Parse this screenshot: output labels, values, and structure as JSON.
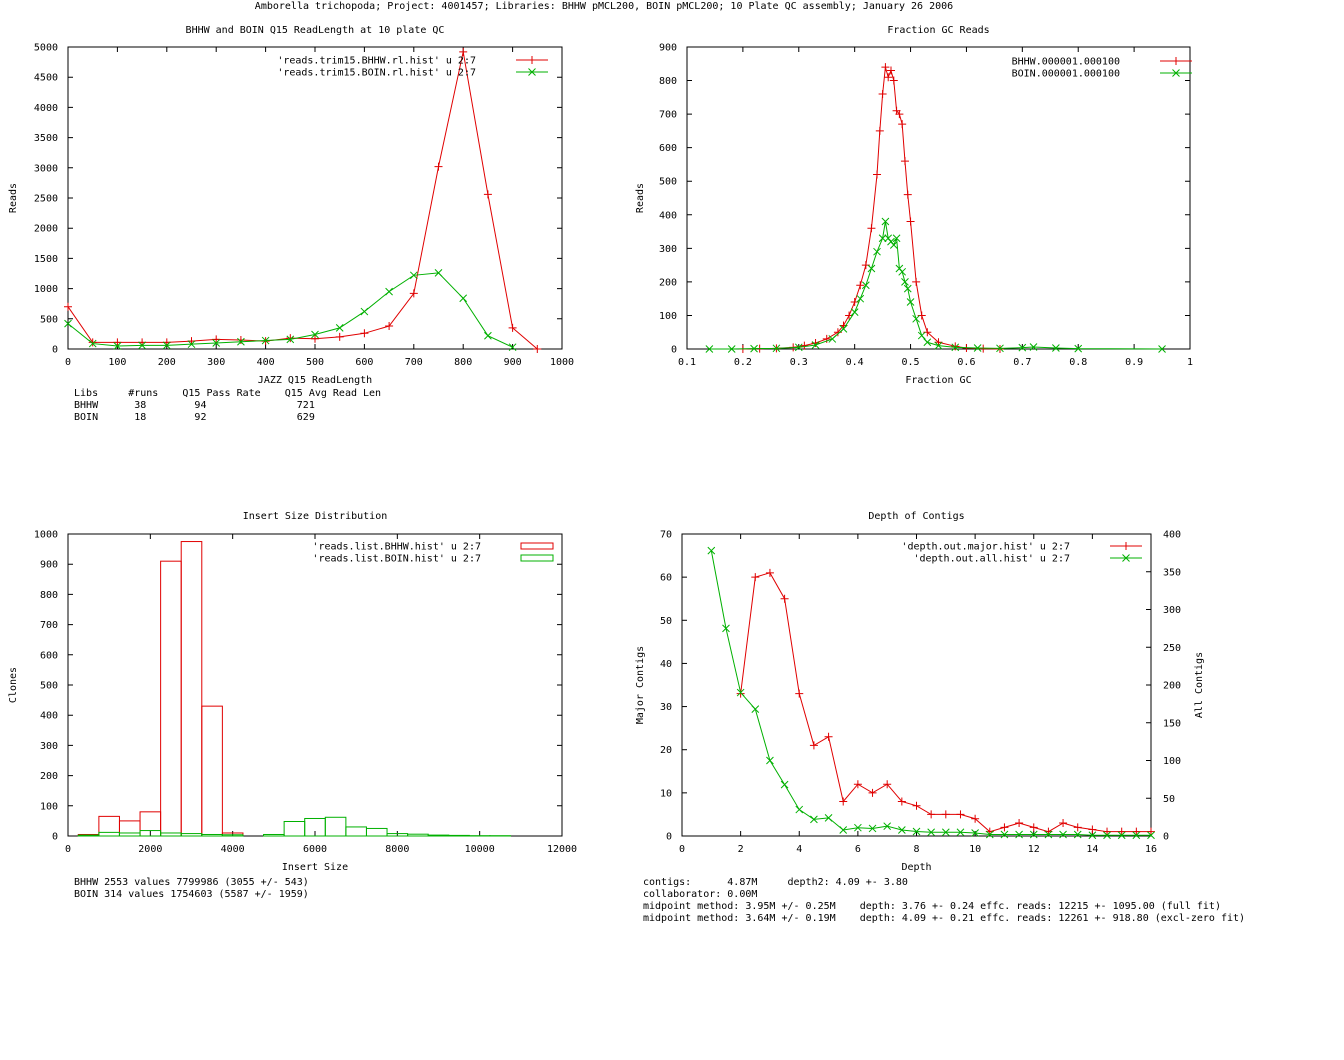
{
  "header": "Amborella trichopoda; Project: 4001457; Libraries: BHHW pMCL200, BOIN pMCL200; 10 Plate QC assembly; January 26 2006",
  "colors": {
    "red": "#e00000",
    "green": "#00b000",
    "axis": "#000000"
  },
  "chart_data": [
    {
      "type": "line",
      "title": "BHHW and BOIN Q15 ReadLength at 10 plate QC",
      "xlabel": "JAZZ Q15 ReadLength",
      "ylabel": "Reads",
      "xlim": [
        0,
        1000
      ],
      "ylim": [
        0,
        5000
      ],
      "xticks": [
        0,
        100,
        200,
        300,
        400,
        500,
        600,
        700,
        800,
        900,
        1000
      ],
      "yticks": [
        0,
        500,
        1000,
        1500,
        2000,
        2500,
        3000,
        3500,
        4000,
        4500,
        5000
      ],
      "legend": "top-right",
      "series": [
        {
          "name": "'reads.trim15.BHHW.rl.hist' u 2:7",
          "color": "#e00000",
          "marker": "plus",
          "x": [
            0,
            50,
            100,
            150,
            200,
            250,
            300,
            350,
            400,
            450,
            500,
            550,
            600,
            650,
            700,
            750,
            800,
            850,
            900,
            950
          ],
          "y": [
            700,
            110,
            110,
            110,
            110,
            130,
            160,
            150,
            130,
            180,
            170,
            200,
            260,
            380,
            920,
            3020,
            4920,
            2560,
            350,
            0
          ]
        },
        {
          "name": "'reads.trim15.BOIN.rl.hist' u 2:7",
          "color": "#00b000",
          "marker": "x",
          "x": [
            0,
            50,
            100,
            150,
            200,
            250,
            300,
            350,
            400,
            450,
            500,
            550,
            600,
            650,
            700,
            750,
            800,
            850,
            900
          ],
          "y": [
            420,
            90,
            50,
            60,
            60,
            80,
            100,
            120,
            140,
            160,
            240,
            350,
            620,
            950,
            1220,
            1260,
            840,
            220,
            30
          ]
        }
      ]
    },
    {
      "type": "line",
      "title": "Fraction GC Reads",
      "xlabel": "Fraction GC",
      "ylabel": "Reads",
      "xlim": [
        0.1,
        1
      ],
      "ylim": [
        0,
        900
      ],
      "xticks": [
        0.1,
        0.2,
        0.3,
        0.4,
        0.5,
        0.6,
        0.7,
        0.8,
        0.9,
        1
      ],
      "yticks": [
        0,
        100,
        200,
        300,
        400,
        500,
        600,
        700,
        800,
        900
      ],
      "legend": "top-right",
      "series": [
        {
          "name": "BHHW.000001.000100",
          "color": "#e00000",
          "marker": "plus",
          "x": [
            0.2,
            0.23,
            0.26,
            0.29,
            0.31,
            0.33,
            0.35,
            0.37,
            0.38,
            0.39,
            0.4,
            0.41,
            0.42,
            0.43,
            0.44,
            0.445,
            0.45,
            0.455,
            0.46,
            0.465,
            0.47,
            0.475,
            0.48,
            0.485,
            0.49,
            0.495,
            0.5,
            0.51,
            0.52,
            0.53,
            0.55,
            0.58,
            0.6,
            0.63,
            0.66
          ],
          "y": [
            0,
            1,
            2,
            5,
            10,
            18,
            30,
            50,
            70,
            100,
            140,
            190,
            250,
            360,
            520,
            650,
            760,
            840,
            810,
            830,
            800,
            710,
            700,
            670,
            560,
            460,
            380,
            200,
            100,
            50,
            20,
            8,
            3,
            1,
            0
          ]
        },
        {
          "name": "BOIN.000001.000100",
          "color": "#00b000",
          "marker": "x",
          "x": [
            0.14,
            0.18,
            0.22,
            0.26,
            0.3,
            0.33,
            0.36,
            0.38,
            0.4,
            0.41,
            0.42,
            0.43,
            0.44,
            0.45,
            0.455,
            0.46,
            0.465,
            0.47,
            0.475,
            0.48,
            0.485,
            0.49,
            0.495,
            0.5,
            0.51,
            0.52,
            0.53,
            0.55,
            0.58,
            0.62,
            0.66,
            0.7,
            0.72,
            0.76,
            0.8,
            0.95
          ],
          "y": [
            0,
            0,
            1,
            2,
            5,
            12,
            30,
            60,
            110,
            150,
            190,
            240,
            290,
            330,
            380,
            330,
            320,
            310,
            330,
            240,
            230,
            200,
            180,
            140,
            90,
            40,
            20,
            10,
            5,
            3,
            2,
            4,
            6,
            3,
            1,
            0
          ]
        }
      ]
    },
    {
      "type": "histogram",
      "title": "Insert Size Distribution",
      "xlabel": "Insert Size",
      "ylabel": "Clones",
      "xlim": [
        0,
        12000
      ],
      "ylim": [
        0,
        1000
      ],
      "xticks": [
        0,
        2000,
        4000,
        6000,
        8000,
        10000,
        12000
      ],
      "yticks": [
        0,
        100,
        200,
        300,
        400,
        500,
        600,
        700,
        800,
        900,
        1000
      ],
      "bin_width": 500,
      "legend": "top-right",
      "series": [
        {
          "name": "'reads.list.BHHW.hist' u 2:7",
          "color": "#e00000",
          "bin_starts": [
            250,
            750,
            1250,
            1750,
            2250,
            2750,
            3250,
            3750
          ],
          "values": [
            5,
            65,
            50,
            80,
            910,
            975,
            430,
            10
          ]
        },
        {
          "name": "'reads.list.BOIN.hist' u 2:7",
          "color": "#00b000",
          "bin_starts": [
            250,
            750,
            1250,
            1750,
            2250,
            2750,
            3250,
            3750,
            4750,
            5250,
            5750,
            6250,
            6750,
            7250,
            7750,
            8250,
            8750,
            9250,
            9750,
            10250
          ],
          "values": [
            3,
            12,
            10,
            18,
            10,
            8,
            5,
            4,
            5,
            48,
            58,
            62,
            30,
            25,
            8,
            6,
            3,
            2,
            1,
            1
          ]
        }
      ]
    },
    {
      "type": "line",
      "title": "Depth of Contigs",
      "xlabel": "Depth",
      "ylabel": "Major Contigs",
      "y2label": "All Contigs",
      "xlim": [
        0,
        16
      ],
      "ylim": [
        0,
        70
      ],
      "y2lim": [
        0,
        400
      ],
      "xticks": [
        0,
        2,
        4,
        6,
        8,
        10,
        12,
        14,
        16
      ],
      "yticks": [
        0,
        10,
        20,
        30,
        40,
        50,
        60,
        70
      ],
      "y2ticks": [
        0,
        50,
        100,
        150,
        200,
        250,
        300,
        350,
        400
      ],
      "legend": "top-right",
      "series": [
        {
          "name": "'depth.out.major.hist' u 2:7",
          "axis": "y",
          "color": "#e00000",
          "marker": "plus",
          "x": [
            2,
            2.5,
            3,
            3.5,
            4,
            4.5,
            5,
            5.5,
            6,
            6.5,
            7,
            7.5,
            8,
            8.5,
            9,
            9.5,
            10,
            10.5,
            11,
            11.5,
            12,
            12.5,
            13,
            13.5,
            14,
            14.5,
            15,
            15.5,
            16
          ],
          "y": [
            33,
            60,
            61,
            55,
            33,
            21,
            23,
            8,
            12,
            10,
            12,
            8,
            7,
            5,
            5,
            5,
            4,
            1,
            2,
            3,
            2,
            1,
            3,
            2,
            1.5,
            1,
            1,
            1,
            1
          ]
        },
        {
          "name": "'depth.out.all.hist' u 2:7",
          "axis": "y2",
          "color": "#00b000",
          "marker": "x",
          "x": [
            1,
            1.5,
            2,
            2.5,
            3,
            3.5,
            4,
            4.5,
            5,
            5.5,
            6,
            6.5,
            7,
            7.5,
            8,
            8.5,
            9,
            9.5,
            10,
            10.5,
            11,
            11.5,
            12,
            12.5,
            13,
            13.5,
            14,
            14.5,
            15,
            15.5,
            16
          ],
          "y": [
            378,
            275,
            190,
            168,
            100,
            68,
            35,
            22,
            24,
            8,
            11,
            10,
            13,
            8,
            6,
            5,
            5,
            5,
            4,
            2,
            2,
            2,
            2,
            2,
            2,
            2,
            1,
            1,
            1,
            1,
            1
          ]
        }
      ]
    }
  ],
  "panels": [
    {
      "lines": [
        " Libs     #runs    Q15 Pass Rate    Q15 Avg Read Len",
        " BHHW      38        94               721",
        " BOIN      18        92               629"
      ]
    },
    {
      "lines": []
    },
    {
      "lines": [
        " BHHW 2553 values 7799986 (3055 +/- 543)",
        " BOIN 314 values 1754603 (5587 +/- 1959)"
      ]
    },
    {
      "lines": [
        "contigs:      4.87M     depth2: 4.09 +- 3.80",
        "collaborator: 0.00M",
        "midpoint method: 3.95M +/- 0.25M    depth: 3.76 +- 0.24 effc. reads: 12215 +- 1095.00 (full fit)",
        "midpoint method: 3.64M +/- 0.19M    depth: 4.09 +- 0.21 effc. reads: 12261 +- 918.80 (excl-zero fit)"
      ]
    }
  ]
}
